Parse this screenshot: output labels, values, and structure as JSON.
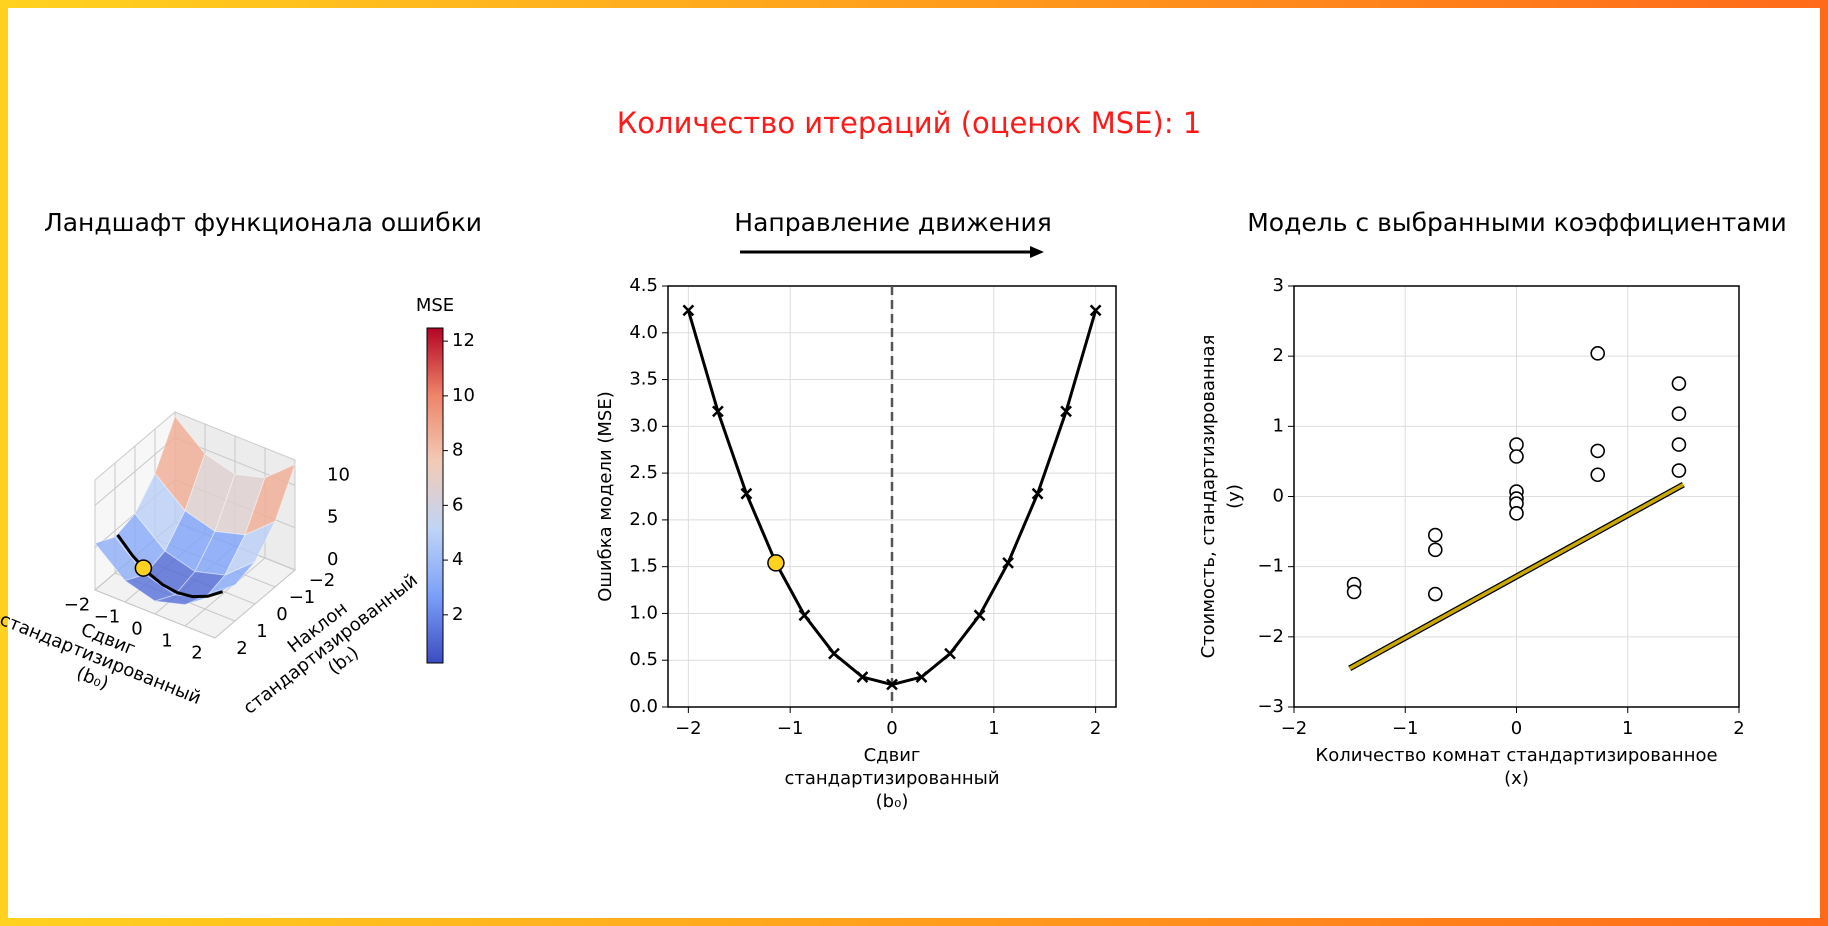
{
  "title": "Количество итераций (оценок MSE): 1",
  "chart_data": [
    {
      "type": "surface",
      "title": "Ландшафт функционала ошибки",
      "xlabel": [
        "Сдвиг",
        "стандартизированный",
        "(b₀)"
      ],
      "ylabel": [
        "Наклон",
        "стандартизированный",
        "(b₁)"
      ],
      "x": [
        -2,
        -1,
        0,
        1,
        2
      ],
      "y": [
        -2,
        -1,
        0,
        1,
        2
      ],
      "z": [
        [
          12.48,
          9.48,
          8.48,
          9.48,
          12.48
        ],
        [
          7.74,
          4.74,
          3.74,
          4.74,
          7.74
        ],
        [
          5,
          2,
          1,
          2,
          5
        ],
        [
          4.26,
          1.26,
          0.26,
          1.26,
          4.26
        ],
        [
          5.52,
          2.52,
          1.52,
          2.52,
          5.52
        ]
      ],
      "xlim": [
        -2,
        2
      ],
      "ylim": [
        -2,
        2
      ],
      "zlim": [
        0,
        13
      ],
      "xticks": [
        {
          "value": -2,
          "label": "−2"
        },
        {
          "value": -1,
          "label": "−1"
        },
        0,
        1,
        2
      ],
      "yticks": [
        {
          "value": -2,
          "label": "−2"
        },
        {
          "value": -1,
          "label": "−1"
        },
        0,
        1,
        2
      ],
      "zticks": [
        0,
        5,
        10
      ],
      "path": {
        "x": [
          -2,
          -1.5,
          -1,
          -0.5,
          0,
          0.5,
          1,
          1.5
        ],
        "y": 0.87,
        "z": [
          4.24,
          2.49,
          1.24,
          0.49,
          0.24,
          0.49,
          1.24,
          2.49
        ]
      },
      "point": {
        "x": -1.14,
        "y": 0.87,
        "z": 1.54,
        "color": "#ffd21f"
      },
      "colormap": [
        "#3b4cc0",
        "#7b9ff9",
        "#c0d4f5",
        "#f2cbb7",
        "#ee8468",
        "#b40426"
      ],
      "colorbar": {
        "label": "MSE",
        "lim": [
          0.24,
          12.48
        ],
        "ticks": [
          2,
          4,
          6,
          8,
          10,
          12
        ]
      }
    },
    {
      "type": "line",
      "title": "Направление движения",
      "xlabel": [
        "Сдвиг",
        "стандартизированный",
        "(b₀)"
      ],
      "ylabel": "Ошибка модели (MSE)",
      "x": [
        -2,
        -1.71,
        -1.43,
        -1.14,
        -0.86,
        -0.57,
        -0.29,
        0,
        0.29,
        0.57,
        0.86,
        1.14,
        1.43,
        1.71,
        2
      ],
      "values": [
        4.24,
        3.16,
        2.28,
        1.54,
        0.98,
        0.57,
        0.32,
        0.24,
        0.32,
        0.57,
        0.98,
        1.54,
        2.28,
        3.16,
        4.24
      ],
      "color": "#000000",
      "vline": 0,
      "point": {
        "x": -1.14,
        "y": 1.54,
        "color": "#ffd21f"
      },
      "xlim": [
        -2.2,
        2.2
      ],
      "ylim": [
        0,
        4.5
      ],
      "xticks": [
        {
          "value": -2,
          "label": "−2"
        },
        {
          "value": -1,
          "label": "−1"
        },
        0,
        1,
        2
      ],
      "yticks": [
        {
          "value": 0,
          "label": "0.0"
        },
        0.5,
        {
          "value": 1,
          "label": "1.0"
        },
        1.5,
        {
          "value": 2,
          "label": "2.0"
        },
        2.5,
        {
          "value": 3,
          "label": "3.0"
        },
        3.5,
        {
          "value": 4,
          "label": "4.0"
        },
        4.5
      ],
      "grid": true
    },
    {
      "type": "scatter",
      "title": "Модель с выбранными коэффициентами",
      "xlabel": [
        "Количество комнат стандартизированное",
        "(x)"
      ],
      "ylabel": [
        "Стоимость, стандартизированная",
        "(y)"
      ],
      "x": [
        -1.46,
        -1.46,
        -0.73,
        -0.73,
        -0.73,
        0,
        0,
        0,
        0,
        0,
        0,
        0.73,
        0.73,
        0.73,
        1.46,
        1.46,
        1.46,
        1.46
      ],
      "values": [
        -1.25,
        -1.36,
        -0.55,
        -0.76,
        -1.39,
        0.74,
        0.57,
        0.07,
        -0.03,
        -0.1,
        -0.24,
        2.04,
        0.65,
        0.31,
        1.61,
        1.18,
        0.74,
        0.37
      ],
      "line": {
        "x": [
          -1.5,
          1.5
        ],
        "y": [
          -2.45,
          0.17
        ],
        "color": "#c9a800"
      },
      "xlim": [
        -2,
        2
      ],
      "ylim": [
        -3,
        3
      ],
      "xticks": [
        {
          "value": -2,
          "label": "−2"
        },
        {
          "value": -1,
          "label": "−1"
        },
        0,
        1,
        2
      ],
      "yticks": [
        {
          "value": -3,
          "label": "−3"
        },
        {
          "value": -2,
          "label": "−2"
        },
        {
          "value": -1,
          "label": "−1"
        },
        0,
        1,
        2,
        3
      ],
      "grid": true
    }
  ]
}
